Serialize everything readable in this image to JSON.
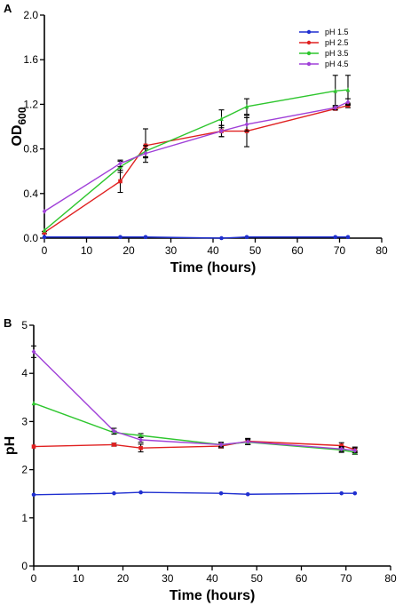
{
  "chart_data": [
    {
      "panel_label": "A",
      "type": "line",
      "xlabel": "Time (hours)",
      "ylabel_main": "OD",
      "ylabel_sub": "600",
      "xlim": [
        0,
        80
      ],
      "ylim": [
        0,
        2.0
      ],
      "xticks": [
        0,
        10,
        20,
        30,
        40,
        50,
        60,
        70,
        80
      ],
      "yticks": [
        0.0,
        0.4,
        0.8,
        1.2,
        1.6,
        2.0
      ],
      "ytick_labels": [
        "0.0",
        "0.4",
        "0.8",
        "1.2",
        "1.6",
        "2.0"
      ],
      "legend_position": "top-right",
      "series": [
        {
          "name": "pH 1.5",
          "color": "#1f2fd0",
          "marker": "circle",
          "x": [
            0,
            18,
            24,
            42,
            48,
            69,
            72
          ],
          "y": [
            0.01,
            0.01,
            0.01,
            0.0,
            0.01,
            0.01,
            0.01
          ],
          "err": [
            0,
            0,
            0,
            0,
            0,
            0,
            0
          ]
        },
        {
          "name": "pH 2.5",
          "color": "#e02020",
          "marker": "square",
          "x": [
            0,
            18,
            24,
            42,
            48,
            69,
            72
          ],
          "y": [
            0.05,
            0.51,
            0.83,
            0.96,
            0.96,
            1.16,
            1.19
          ],
          "err": [
            0.01,
            0.1,
            0.15,
            0.05,
            0.14,
            0.01,
            0.02
          ]
        },
        {
          "name": "pH 3.5",
          "color": "#2ec62e",
          "marker": "triangle",
          "x": [
            0,
            18,
            24,
            42,
            48,
            69,
            72
          ],
          "y": [
            0.07,
            0.64,
            0.78,
            1.07,
            1.18,
            1.32,
            1.33
          ],
          "err": [
            0,
            0.05,
            0.05,
            0.08,
            0.07,
            0.14,
            0.13
          ]
        },
        {
          "name": "pH 4.5",
          "color": "#a040d8",
          "marker": "diamond",
          "x": [
            0,
            18,
            24,
            42,
            48,
            69,
            72
          ],
          "y": [
            0.24,
            0.67,
            0.76,
            0.96,
            1.02,
            1.17,
            1.22
          ],
          "err": [
            0,
            0.03,
            0.04,
            0.05,
            0.06,
            0.02,
            0.03
          ]
        }
      ]
    },
    {
      "panel_label": "B",
      "type": "line",
      "xlabel": "Time (hours)",
      "ylabel_main": "pH",
      "ylabel_sub": "",
      "xlim": [
        0,
        80
      ],
      "ylim": [
        0,
        5
      ],
      "xticks": [
        0,
        10,
        20,
        30,
        40,
        50,
        60,
        70,
        80
      ],
      "yticks": [
        0,
        1,
        2,
        3,
        4,
        5
      ],
      "ytick_labels": [
        "0",
        "1",
        "2",
        "3",
        "4",
        "5"
      ],
      "series": [
        {
          "name": "pH 1.5",
          "color": "#1f2fd0",
          "marker": "circle",
          "x": [
            0,
            18,
            24,
            42,
            48,
            69,
            72
          ],
          "y": [
            1.48,
            1.51,
            1.53,
            1.51,
            1.49,
            1.51,
            1.51
          ],
          "err": [
            0,
            0,
            0,
            0,
            0,
            0,
            0
          ]
        },
        {
          "name": "pH 2.5",
          "color": "#e02020",
          "marker": "square",
          "x": [
            0,
            18,
            24,
            42,
            48,
            69,
            72
          ],
          "y": [
            2.48,
            2.52,
            2.45,
            2.49,
            2.59,
            2.5,
            2.42
          ],
          "err": [
            0,
            0.03,
            0.08,
            0.04,
            0.06,
            0.06,
            0.05
          ]
        },
        {
          "name": "pH 3.5",
          "color": "#2ec62e",
          "marker": "triangle",
          "x": [
            0,
            18,
            24,
            42,
            48,
            69,
            72
          ],
          "y": [
            3.38,
            2.77,
            2.71,
            2.52,
            2.57,
            2.41,
            2.36
          ],
          "err": [
            0,
            0.03,
            0.04,
            0.05,
            0.05,
            0.05,
            0.04
          ]
        },
        {
          "name": "pH 4.5",
          "color": "#a040d8",
          "marker": "diamond",
          "x": [
            0,
            18,
            24,
            42,
            48,
            69,
            72
          ],
          "y": [
            4.45,
            2.8,
            2.62,
            2.52,
            2.58,
            2.43,
            2.4
          ],
          "err": [
            0.12,
            0.06,
            0.05,
            0.04,
            0.06,
            0.05,
            0.05
          ]
        }
      ]
    }
  ]
}
